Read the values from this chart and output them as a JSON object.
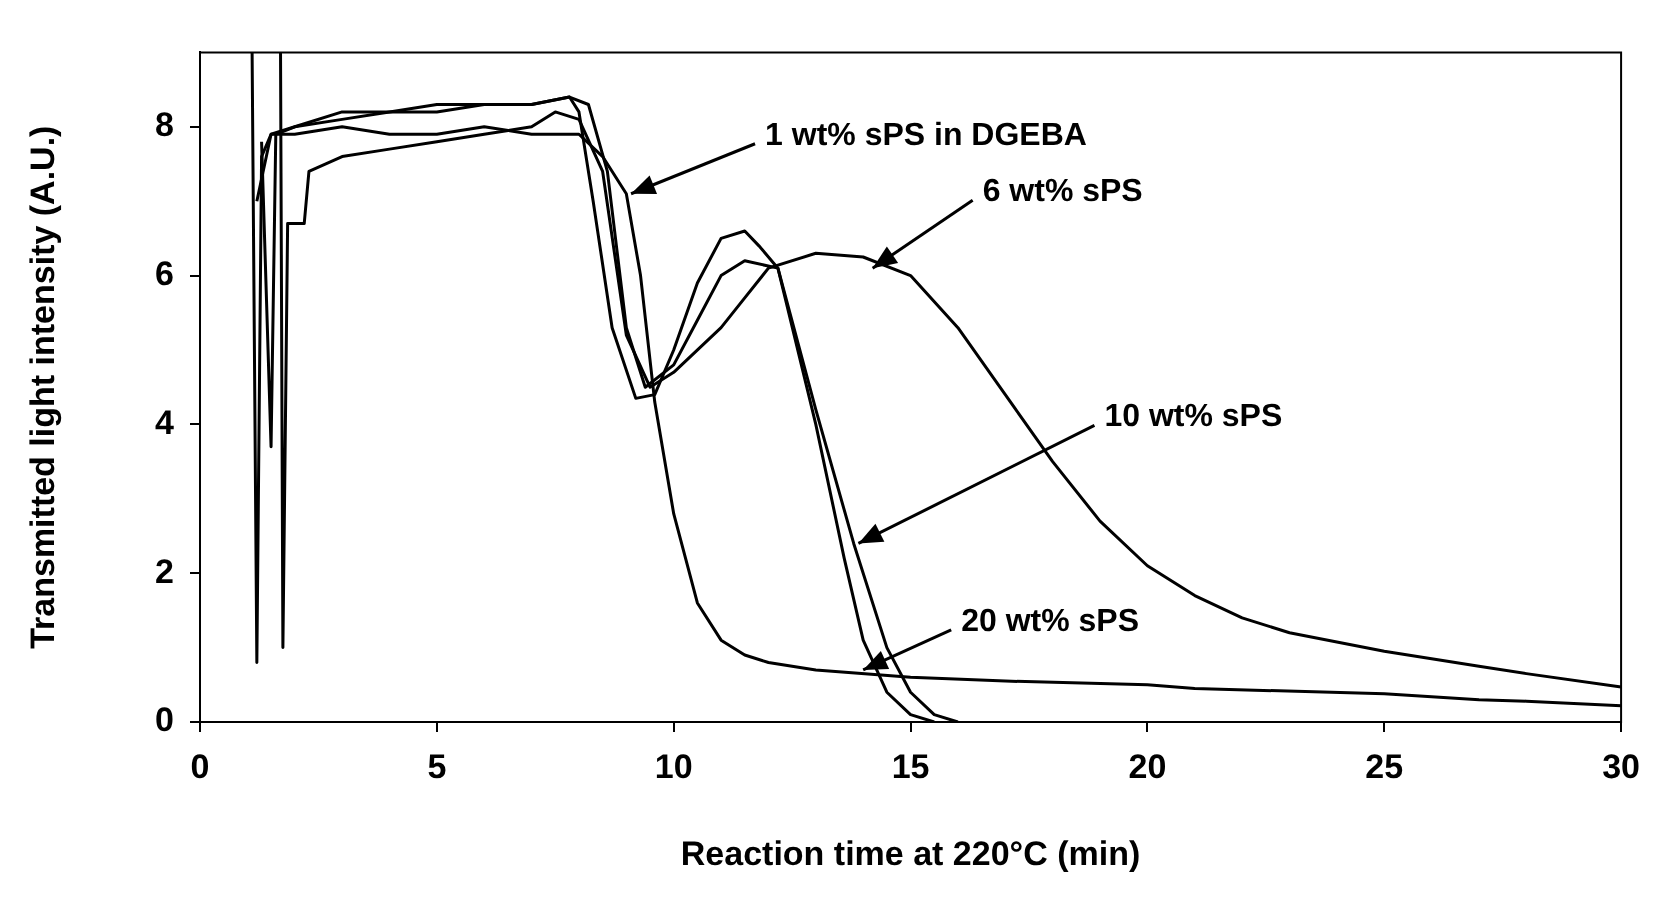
{
  "chart_data": {
    "type": "line",
    "xlabel": "Reaction time at 220°C (min)",
    "ylabel": "Transmitted light intensity (A.U.)",
    "xlim": [
      0,
      30
    ],
    "ylim": [
      0,
      9
    ],
    "xticks": [
      0,
      5,
      10,
      15,
      20,
      25,
      30
    ],
    "yticks": [
      0,
      2,
      4,
      6,
      8
    ],
    "grid": false,
    "marker": "none",
    "line_style": "solid",
    "series": [
      {
        "color": "#000000",
        "x": [
          1.1,
          1.2,
          1.3,
          1.5,
          2,
          3,
          4,
          5,
          6,
          7,
          8,
          8.5,
          9,
          9.3,
          9.6,
          10,
          10.5,
          11,
          11.5,
          12,
          13,
          15,
          17,
          20,
          21,
          25,
          27,
          28,
          30
        ],
        "values": [
          9,
          0.8,
          7.6,
          7.9,
          7.9,
          8.0,
          7.9,
          7.9,
          8.0,
          7.9,
          7.9,
          7.6,
          7.1,
          6.0,
          4.3,
          2.8,
          1.6,
          1.1,
          0.9,
          0.8,
          0.7,
          0.6,
          0.55,
          0.5,
          0.45,
          0.38,
          0.3,
          0.28,
          0.22
        ]
      },
      {
        "color": "#000000",
        "x": [
          1.7,
          1.75,
          1.85,
          2.2,
          2.3,
          3,
          4,
          5,
          6,
          7,
          7.5,
          8,
          8.5,
          9,
          9.5,
          10,
          11,
          11.5,
          12,
          13,
          14,
          15,
          16,
          17,
          18,
          19,
          20,
          21,
          22,
          23,
          25,
          27,
          28,
          30
        ],
        "values": [
          9,
          1.0,
          6.7,
          6.7,
          7.4,
          7.6,
          7.7,
          7.8,
          7.9,
          8.0,
          8.2,
          8.1,
          7.4,
          5.2,
          4.5,
          4.7,
          5.3,
          5.7,
          6.1,
          6.3,
          6.25,
          6.0,
          5.3,
          4.4,
          3.5,
          2.7,
          2.1,
          1.7,
          1.4,
          1.2,
          0.95,
          0.75,
          0.65,
          0.47
        ]
      },
      {
        "color": "#000000",
        "x": [
          1.3,
          1.5,
          1.6,
          2,
          3,
          4,
          5,
          6,
          7,
          7.8,
          8.2,
          8.6,
          9,
          9.4,
          10,
          10.5,
          11,
          11.5,
          12.2,
          13,
          13.8,
          14.5,
          15,
          15.5,
          16
        ],
        "values": [
          7.8,
          3.7,
          7.9,
          8.0,
          8.1,
          8.2,
          8.2,
          8.3,
          8.3,
          8.4,
          8.3,
          7.4,
          5.3,
          4.5,
          4.8,
          5.4,
          6.0,
          6.2,
          6.1,
          4.2,
          2.4,
          1.0,
          0.4,
          0.1,
          0
        ]
      },
      {
        "color": "#000000",
        "x": [
          1.2,
          1.5,
          2,
          3,
          4,
          5,
          6,
          7,
          7.8,
          8,
          8.3,
          8.7,
          9.2,
          9.6,
          10,
          10.5,
          11,
          11.5,
          11.8,
          12.2,
          13,
          13.6,
          14,
          14.5,
          15,
          15.5
        ],
        "values": [
          7.0,
          7.9,
          8.0,
          8.2,
          8.2,
          8.3,
          8.3,
          8.3,
          8.4,
          8.2,
          7.0,
          5.3,
          4.35,
          4.4,
          5.0,
          5.9,
          6.5,
          6.6,
          6.4,
          6.1,
          4.0,
          2.2,
          1.1,
          0.4,
          0.1,
          0
        ]
      }
    ],
    "annotations": [
      {
        "text": "1 wt% sPS in DGEBA",
        "x": 9.1,
        "y": 7.1
      },
      {
        "text": "6 wt% sPS",
        "x": 14.2,
        "y": 6.1
      },
      {
        "text": "10 wt% sPS",
        "x": 13.9,
        "y": 2.4
      },
      {
        "text": "20 wt% sPS",
        "x": 14.0,
        "y": 0.7
      }
    ]
  }
}
